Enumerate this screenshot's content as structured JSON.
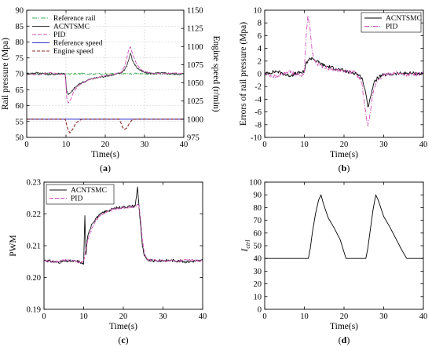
{
  "chart_data": [
    {
      "id": "a",
      "type": "line",
      "panel_label": "a",
      "xlabel": "Time(s)",
      "ylabel": "Rail pressure (Mpa)",
      "y2label": "Engine speed (r/min)",
      "xlim": [
        0,
        40
      ],
      "ylim": [
        50,
        90
      ],
      "y2lim": [
        975,
        1150
      ],
      "xticks": [
        0,
        10,
        20,
        30,
        40
      ],
      "yticks": [
        50,
        55,
        60,
        65,
        70,
        75,
        80,
        85,
        90
      ],
      "y2ticks": [
        975,
        1000,
        1025,
        1050,
        1075,
        1100,
        1125,
        1150
      ],
      "grid": true,
      "legend_position": "top-left",
      "series": [
        {
          "name": "Reference rail",
          "axis": "left",
          "color": "#3fae5a",
          "dash": "6,2,1,2",
          "x": [
            0,
            10,
            10.01,
            25,
            25.01,
            40
          ],
          "y": [
            70,
            70,
            70,
            70,
            70,
            70
          ]
        },
        {
          "name": "ACNTSMC",
          "axis": "left",
          "color": "#333333",
          "dash": "",
          "x": [
            0,
            3,
            6,
            9,
            9.8,
            10.2,
            10.6,
            11.2,
            12,
            13,
            14,
            16,
            18,
            20,
            22,
            24,
            25,
            25.6,
            26,
            26.4,
            27,
            28,
            29,
            30,
            32,
            35,
            38,
            40
          ],
          "y": [
            70,
            70.3,
            69.8,
            70.1,
            70,
            64.5,
            63.4,
            64,
            65.3,
            66.4,
            67.2,
            68.2,
            68.8,
            69.3,
            69.7,
            70.2,
            71.5,
            73,
            74.5,
            76.5,
            74,
            72,
            71,
            70.4,
            70.1,
            70.2,
            69.9,
            70
          ]
        },
        {
          "name": "PID",
          "axis": "left",
          "color": "#d14db9",
          "dash": "5,2",
          "x": [
            0,
            3,
            6,
            9,
            9.8,
            10.2,
            10.6,
            11.2,
            12,
            13,
            14,
            16,
            18,
            20,
            22,
            24,
            25,
            25.6,
            26,
            26.4,
            27,
            28,
            29,
            30,
            32,
            35,
            38,
            40
          ],
          "y": [
            70,
            69.6,
            70.4,
            69.8,
            70,
            62.5,
            60.8,
            62,
            64.5,
            66,
            67,
            68.2,
            68.8,
            69.4,
            69.8,
            70.4,
            72.5,
            75.5,
            77.8,
            78.5,
            76,
            73,
            71.5,
            70.6,
            70.2,
            70,
            70.3,
            70
          ]
        },
        {
          "name": "Reference speed",
          "axis": "right",
          "color": "#3b3bd6",
          "dash": "",
          "x": [
            0,
            40
          ],
          "y": [
            1000,
            1000
          ]
        },
        {
          "name": "Engine speed",
          "axis": "right",
          "color": "#8b2a2a",
          "dash": "4,2",
          "x": [
            0,
            9.8,
            10.1,
            10.5,
            11,
            11.8,
            12.5,
            14,
            22,
            23.5,
            24,
            24.4,
            24.9,
            25.5,
            26.2,
            27,
            40
          ],
          "y": [
            1000,
            1000,
            994,
            986,
            981,
            987,
            995,
            1000,
            1000,
            1000,
            995,
            989,
            986,
            988,
            995,
            1000,
            1000
          ]
        }
      ]
    },
    {
      "id": "b",
      "type": "line",
      "panel_label": "b",
      "xlabel": "Time(s)",
      "ylabel": "Errors of rail pressure (Mpa)",
      "xlim": [
        0,
        40
      ],
      "ylim": [
        -10,
        10
      ],
      "xticks": [
        0,
        10,
        20,
        30,
        40
      ],
      "yticks": [
        -10,
        -8,
        -6,
        -4,
        -2,
        0,
        2,
        4,
        6,
        8,
        10
      ],
      "grid": false,
      "legend_position": "top-right",
      "series": [
        {
          "name": "ACNTSMC",
          "color": "#000000",
          "dash": "",
          "x": [
            0,
            3,
            6,
            9,
            10,
            10.4,
            11,
            12,
            13,
            15,
            18,
            21,
            23,
            24.5,
            25.3,
            26,
            26.6,
            27.5,
            28.5,
            30,
            33,
            36,
            40
          ],
          "y": [
            0,
            0.4,
            -0.3,
            0.2,
            0.3,
            1.6,
            2.2,
            2.5,
            2.0,
            1.3,
            0.8,
            0.3,
            0.1,
            -0.6,
            -2.5,
            -5.2,
            -3.8,
            -1.5,
            -0.6,
            -0.2,
            0,
            0.1,
            0
          ]
        },
        {
          "name": "PID",
          "color": "#d14db9",
          "dash": "6,2,1,2",
          "x": [
            0,
            3,
            6,
            9,
            10,
            10.4,
            10.9,
            11.4,
            12,
            13,
            15,
            18,
            21,
            23,
            24.5,
            25.3,
            26,
            26.5,
            27.2,
            28.5,
            30,
            33,
            36,
            40
          ],
          "y": [
            0,
            -0.5,
            0.4,
            -0.3,
            0.2,
            5.5,
            9.2,
            7.5,
            3.2,
            1.6,
            1.0,
            0.6,
            0.3,
            0.2,
            -1.5,
            -5.5,
            -8.2,
            -6.5,
            -3.0,
            -1.0,
            -0.3,
            0.2,
            -0.2,
            0
          ]
        }
      ]
    },
    {
      "id": "c",
      "type": "line",
      "panel_label": "c",
      "xlabel": "Time(s)",
      "ylabel": "PWM",
      "xlim": [
        0,
        40
      ],
      "ylim": [
        0.19,
        0.23
      ],
      "xticks": [
        0,
        10,
        20,
        30,
        40
      ],
      "yticks": [
        0.19,
        0.2,
        0.21,
        0.22,
        0.23
      ],
      "ytick_labels": [
        "0.19",
        "0.20",
        "0.21",
        "0.22",
        "0.23"
      ],
      "grid": false,
      "legend_position": "top-left",
      "series": [
        {
          "name": "ACNTSMC",
          "color": "#111111",
          "dash": "",
          "x": [
            0,
            3,
            6,
            9,
            10,
            10.3,
            10.6,
            11,
            11.5,
            12,
            13,
            14,
            15,
            16,
            18,
            20,
            22,
            23,
            23.6,
            24,
            24.4,
            24.8,
            25.3,
            26,
            28,
            32,
            36,
            40
          ],
          "y": [
            0.2055,
            0.2048,
            0.2052,
            0.205,
            0.2042,
            0.2195,
            0.2072,
            0.2128,
            0.2148,
            0.2168,
            0.2185,
            0.2196,
            0.2205,
            0.221,
            0.2218,
            0.2222,
            0.2224,
            0.2226,
            0.2285,
            0.2215,
            0.216,
            0.21,
            0.2068,
            0.2055,
            0.2052,
            0.2054,
            0.205,
            0.2053
          ]
        },
        {
          "name": "PID",
          "color": "#d14db9",
          "dash": "5,2",
          "x": [
            0,
            3,
            6,
            9,
            10,
            10.4,
            11,
            11.6,
            12.2,
            13,
            14,
            15,
            16,
            18,
            20,
            22,
            23,
            23.8,
            24.3,
            24.8,
            25.3,
            26,
            28,
            32,
            36,
            40
          ],
          "y": [
            0.2052,
            0.205,
            0.2055,
            0.2048,
            0.205,
            0.208,
            0.2115,
            0.214,
            0.2158,
            0.2178,
            0.2192,
            0.2202,
            0.2208,
            0.2215,
            0.222,
            0.2222,
            0.2224,
            0.2232,
            0.219,
            0.212,
            0.2075,
            0.2058,
            0.2054,
            0.2052,
            0.2055,
            0.2052
          ]
        }
      ]
    },
    {
      "id": "d",
      "type": "line",
      "panel_label": "d",
      "xlabel": "Time(s)",
      "ylabel": "I",
      "ylabel_sub": "ctrl",
      "xlim": [
        0,
        40
      ],
      "ylim": [
        0,
        100
      ],
      "xticks": [
        0,
        10,
        20,
        30,
        40
      ],
      "yticks": [
        0,
        10,
        20,
        30,
        40,
        50,
        60,
        70,
        80,
        90,
        100
      ],
      "grid": false,
      "series": [
        {
          "name": "",
          "color": "#000000",
          "dash": "",
          "x": [
            0,
            11,
            11.5,
            12,
            12.8,
            13.6,
            14.2,
            14.8,
            16,
            17.5,
            19,
            20.5,
            25.5,
            26,
            26.6,
            27.3,
            28,
            28.6,
            30,
            31.5,
            33,
            34.5,
            35.8,
            40
          ],
          "y": [
            40,
            40,
            48,
            60,
            75,
            86,
            90,
            83,
            72,
            64,
            55,
            40,
            40,
            48,
            62,
            78,
            90,
            86,
            73,
            65,
            56,
            47,
            40,
            40
          ]
        }
      ]
    }
  ]
}
